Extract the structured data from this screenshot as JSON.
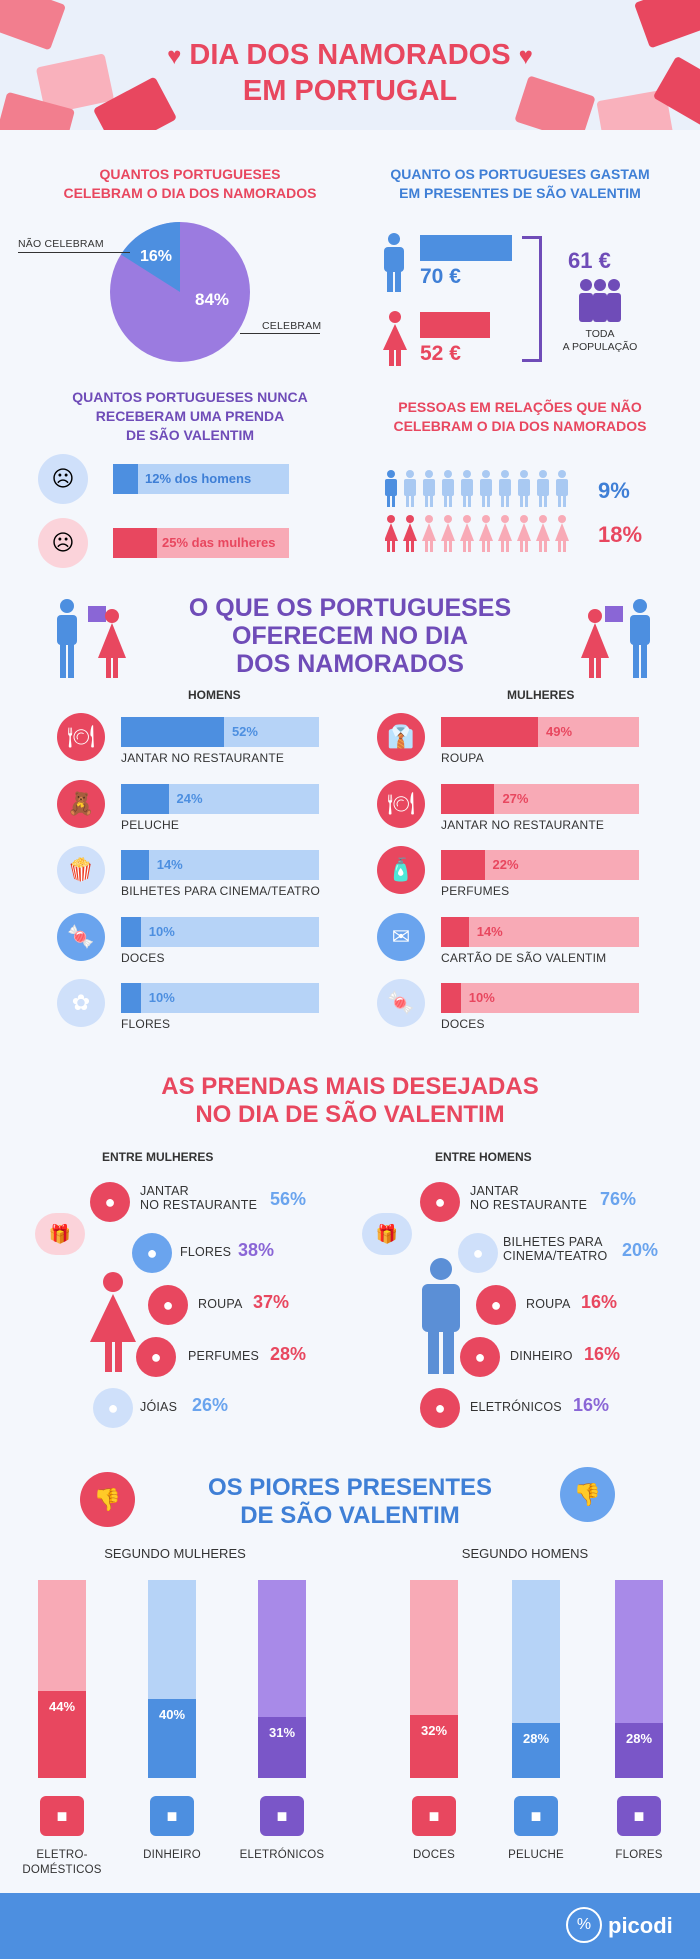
{
  "header": {
    "title_line1": "DIA DOS NAMORADOS",
    "title_line2": "EM PORTUGAL"
  },
  "celebrate": {
    "title_line1": "QUANTOS PORTUGUESES",
    "title_line2": "CELEBRAM O DIA DOS NAMORADOS",
    "not_label": "NÃO CELEBRAM",
    "yes_label": "CELEBRAM",
    "not_pct": "16%",
    "yes_pct": "84%"
  },
  "spend": {
    "title_line1": "QUANTO OS PORTUGUESES GASTAM",
    "title_line2": "EM PRESENTES DE SÃO VALENTIM",
    "men_value": "70 €",
    "women_value": "52 €",
    "total_value": "61 €",
    "total_label_line1": "TODA",
    "total_label_line2": "A POPULAÇÃO"
  },
  "never": {
    "title_line1": "QUANTOS PORTUGUESES NUNCA",
    "title_line2": "RECEBERAM UMA PRENDA",
    "title_line3": "DE SÃO VALENTIM",
    "men_text": "12% dos homens",
    "women_text": "25% das mulheres"
  },
  "couples": {
    "title_line1": "PESSOAS EM RELAÇÕES QUE NÃO",
    "title_line2": "CELEBRAM O DIA DOS NAMORADOS",
    "men_pct": "9%",
    "women_pct": "18%"
  },
  "offer": {
    "title_line1": "O QUE OS PORTUGUESES",
    "title_line2": "OFERECEM NO DIA",
    "title_line3": "DOS NAMORADOS",
    "men_head": "HOMENS",
    "women_head": "MULHERES",
    "men": [
      {
        "label": "JANTAR NO RESTAURANTE",
        "pct": "52%",
        "icon": "cloche-icon"
      },
      {
        "label": "PELUCHE",
        "pct": "24%",
        "icon": "teddy-icon"
      },
      {
        "label": "BILHETES PARA CINEMA/TEATRO",
        "pct": "14%",
        "icon": "popcorn-icon"
      },
      {
        "label": "DOCES",
        "pct": "10%",
        "icon": "candy-icon"
      },
      {
        "label": "FLORES",
        "pct": "10%",
        "icon": "flower-icon"
      }
    ],
    "women": [
      {
        "label": "ROUPA",
        "pct": "49%",
        "icon": "shirt-icon"
      },
      {
        "label": "JANTAR NO RESTAURANTE",
        "pct": "27%",
        "icon": "cloche-icon"
      },
      {
        "label": "PERFUMES",
        "pct": "22%",
        "icon": "perfume-icon"
      },
      {
        "label": "CARTÃO DE SÃO VALENTIM",
        "pct": "14%",
        "icon": "card-icon"
      },
      {
        "label": "DOCES",
        "pct": "10%",
        "icon": "candy-icon"
      }
    ]
  },
  "desired": {
    "title_line1": "AS PRENDAS MAIS DESEJADAS",
    "title_line2": "NO DIA DE SÃO VALENTIM",
    "women_head": "ENTRE MULHERES",
    "men_head": "ENTRE HOMENS",
    "women": [
      {
        "label_line1": "JANTAR",
        "label_line2": "NO RESTAURANTE",
        "pct": "56%"
      },
      {
        "label_line1": "FLORES",
        "label_line2": "",
        "pct": "38%"
      },
      {
        "label_line1": "ROUPA",
        "label_line2": "",
        "pct": "37%"
      },
      {
        "label_line1": "PERFUMES",
        "label_line2": "",
        "pct": "28%"
      },
      {
        "label_line1": "JÓIAS",
        "label_line2": "",
        "pct": "26%"
      }
    ],
    "men": [
      {
        "label_line1": "JANTAR",
        "label_line2": "NO RESTAURANTE",
        "pct": "76%"
      },
      {
        "label_line1": "BILHETES PARA",
        "label_line2": "CINEMA/TEATRO",
        "pct": "20%"
      },
      {
        "label_line1": "ROUPA",
        "label_line2": "",
        "pct": "16%"
      },
      {
        "label_line1": "DINHEIRO",
        "label_line2": "",
        "pct": "16%"
      },
      {
        "label_line1": "ELETRÓNICOS",
        "label_line2": "",
        "pct": "16%"
      }
    ]
  },
  "worst": {
    "title_line1": "OS PIORES PRESENTES",
    "title_line2": "DE SÃO VALENTIM",
    "women_head": "SEGUNDO MULHERES",
    "men_head": "SEGUNDO HOMENS",
    "women": [
      {
        "label_line1": "ELETRO-",
        "label_line2": "DOMÉSTICOS",
        "pct": "44%"
      },
      {
        "label_line1": "DINHEIRO",
        "label_line2": "",
        "pct": "40%"
      },
      {
        "label_line1": "ELETRÓNICOS",
        "label_line2": "",
        "pct": "31%"
      }
    ],
    "men": [
      {
        "label_line1": "DOCES",
        "label_line2": "",
        "pct": "32%"
      },
      {
        "label_line1": "PELUCHE",
        "label_line2": "",
        "pct": "28%"
      },
      {
        "label_line1": "FLORES",
        "label_line2": "",
        "pct": "28%"
      }
    ]
  },
  "footer": {
    "brand": "picodi"
  },
  "colors": {
    "red": "#e8475f",
    "blue": "#4d8fe0",
    "purple": "#8a66d6",
    "light_red": "#f8aab6",
    "light_blue": "#b6d3f7",
    "light_purple": "#a88ae8"
  },
  "chart_data": [
    {
      "type": "pie",
      "categories": [
        "NÃO CELEBRAM",
        "CELEBRAM"
      ],
      "values": [
        16,
        84
      ]
    },
    {
      "type": "bar",
      "categories": [
        "Homens",
        "Mulheres",
        "Toda a população"
      ],
      "values": [
        70,
        52,
        61
      ]
    },
    {
      "type": "bar",
      "categories": [
        "homens",
        "mulheres"
      ],
      "values": [
        12,
        25
      ]
    },
    {
      "type": "bar",
      "categories": [
        "Homens",
        "Mulheres"
      ],
      "values": [
        9,
        18
      ]
    },
    {
      "type": "bar",
      "categories": [
        "JANTAR NO RESTAURANTE",
        "PELUCHE",
        "BILHETES PARA CINEMA/TEATRO",
        "DOCES",
        "FLORES"
      ],
      "values": [
        52,
        24,
        14,
        10,
        10
      ]
    },
    {
      "type": "bar",
      "categories": [
        "ROUPA",
        "JANTAR NO RESTAURANTE",
        "PERFUMES",
        "CARTÃO DE SÃO VALENTIM",
        "DOCES"
      ],
      "values": [
        49,
        27,
        22,
        14,
        10
      ]
    },
    {
      "type": "bar",
      "categories": [
        "JANTAR NO RESTAURANTE",
        "FLORES",
        "ROUPA",
        "PERFUMES",
        "JÓIAS"
      ],
      "values": [
        56,
        38,
        37,
        28,
        26
      ]
    },
    {
      "type": "bar",
      "categories": [
        "JANTAR NO RESTAURANTE",
        "BILHETES PARA CINEMA/TEATRO",
        "ROUPA",
        "DINHEIRO",
        "ELETRÓNICOS"
      ],
      "values": [
        76,
        20,
        16,
        16,
        16
      ]
    },
    {
      "type": "bar",
      "categories": [
        "ELETRODOMÉSTICOS",
        "DINHEIRO",
        "ELETRÓNICOS"
      ],
      "values": [
        44,
        40,
        31
      ],
      "ylim": [
        0,
        100
      ]
    },
    {
      "type": "bar",
      "categories": [
        "DOCES",
        "PELUCHE",
        "FLORES"
      ],
      "values": [
        32,
        28,
        28
      ],
      "ylim": [
        0,
        100
      ]
    }
  ]
}
